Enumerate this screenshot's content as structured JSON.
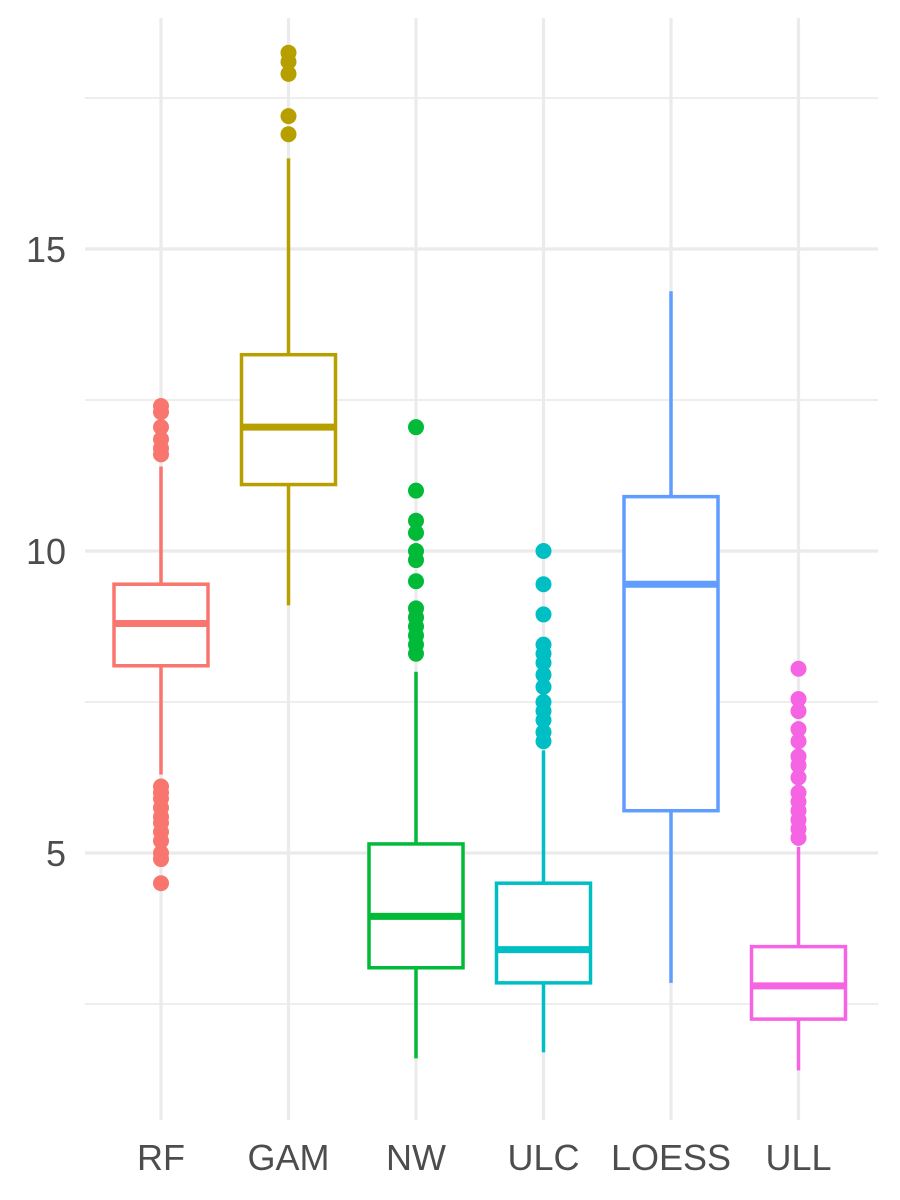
{
  "chart_data": {
    "type": "boxplot",
    "title": "",
    "xlabel": "",
    "ylabel": "",
    "ylim": [
      1.5,
      18.6
    ],
    "y_ticks": [
      5,
      10,
      15
    ],
    "y_tick_labels": [
      "5",
      "10",
      "15"
    ],
    "grid": true,
    "legend": "none",
    "categories": [
      "RF",
      "GAM",
      "NW",
      "ULC",
      "LOESS",
      "ULL"
    ],
    "colors": [
      "#F8766D",
      "#B79F00",
      "#00BA38",
      "#00BFC4",
      "#619CFF",
      "#F564E3"
    ],
    "boxes": [
      {
        "name": "RF",
        "whisker_low": 6.3,
        "q1": 8.1,
        "median": 8.8,
        "q3": 9.45,
        "whisker_high": 11.4,
        "outliers": [
          4.5,
          4.9,
          5.0,
          5.2,
          5.35,
          5.5,
          5.6,
          5.75,
          5.9,
          6.0,
          6.1,
          11.6,
          11.7,
          11.85,
          12.05,
          12.3,
          12.4
        ]
      },
      {
        "name": "GAM",
        "whisker_low": 9.1,
        "q1": 11.1,
        "median": 12.05,
        "q3": 13.25,
        "whisker_high": 16.5,
        "outliers": [
          16.9,
          17.2,
          17.9,
          18.1,
          18.25
        ]
      },
      {
        "name": "NW",
        "whisker_low": 1.6,
        "q1": 3.1,
        "median": 3.95,
        "q3": 5.15,
        "whisker_high": 8.0,
        "outliers": [
          8.3,
          8.45,
          8.6,
          8.75,
          8.9,
          9.05,
          9.5,
          9.85,
          10.0,
          10.3,
          10.5,
          11.0,
          12.05
        ]
      },
      {
        "name": "ULC",
        "whisker_low": 1.7,
        "q1": 2.85,
        "median": 3.4,
        "q3": 4.5,
        "whisker_high": 6.7,
        "outliers": [
          6.85,
          7.0,
          7.2,
          7.35,
          7.5,
          7.75,
          7.95,
          8.15,
          8.3,
          8.45,
          8.95,
          9.45,
          10.0
        ]
      },
      {
        "name": "LOESS",
        "whisker_low": 2.85,
        "q1": 5.7,
        "median": 9.45,
        "q3": 10.9,
        "whisker_high": 14.3,
        "outliers": []
      },
      {
        "name": "ULL",
        "whisker_low": 1.4,
        "q1": 2.25,
        "median": 2.8,
        "q3": 3.45,
        "whisker_high": 5.1,
        "outliers": [
          5.25,
          5.4,
          5.55,
          5.7,
          5.85,
          6.0,
          6.25,
          6.45,
          6.6,
          6.85,
          7.05,
          7.35,
          7.55,
          8.05
        ]
      }
    ]
  }
}
